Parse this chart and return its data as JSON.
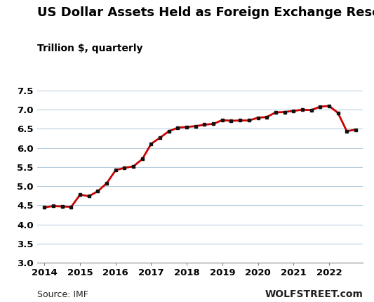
{
  "title": "US Dollar Assets Held as Foreign Exchange Reserves",
  "subtitle": "Trillion $, quarterly",
  "source_text": "Source: IMF",
  "watermark": "WOLFSTREET.com",
  "ylim": [
    3.0,
    7.5
  ],
  "yticks": [
    3.0,
    3.5,
    4.0,
    4.5,
    5.0,
    5.5,
    6.0,
    6.5,
    7.0,
    7.5
  ],
  "background_color": "#ffffff",
  "line_color": "#cc0000",
  "marker_color": "#111111",
  "grid_color": "#b8cfe0",
  "data": [
    [
      2014.0,
      4.45
    ],
    [
      2014.25,
      4.48
    ],
    [
      2014.5,
      4.47
    ],
    [
      2014.75,
      4.46
    ],
    [
      2015.0,
      4.78
    ],
    [
      2015.25,
      4.74
    ],
    [
      2015.5,
      4.87
    ],
    [
      2015.75,
      5.08
    ],
    [
      2016.0,
      5.42
    ],
    [
      2016.25,
      5.48
    ],
    [
      2016.5,
      5.52
    ],
    [
      2016.75,
      5.71
    ],
    [
      2017.0,
      6.11
    ],
    [
      2017.25,
      6.27
    ],
    [
      2017.5,
      6.44
    ],
    [
      2017.75,
      6.53
    ],
    [
      2018.0,
      6.55
    ],
    [
      2018.25,
      6.57
    ],
    [
      2018.5,
      6.61
    ],
    [
      2018.75,
      6.63
    ],
    [
      2019.0,
      6.73
    ],
    [
      2019.25,
      6.71
    ],
    [
      2019.5,
      6.72
    ],
    [
      2019.75,
      6.72
    ],
    [
      2020.0,
      6.79
    ],
    [
      2020.25,
      6.81
    ],
    [
      2020.5,
      6.93
    ],
    [
      2020.75,
      6.94
    ],
    [
      2021.0,
      6.97
    ],
    [
      2021.25,
      7.0
    ],
    [
      2021.5,
      6.99
    ],
    [
      2021.75,
      7.08
    ],
    [
      2022.0,
      7.1
    ],
    [
      2022.25,
      6.92
    ],
    [
      2022.5,
      6.44
    ],
    [
      2022.75,
      6.48
    ]
  ],
  "xticks": [
    2014,
    2015,
    2016,
    2017,
    2018,
    2019,
    2020,
    2021,
    2022
  ],
  "xlim": [
    2013.8,
    2022.95
  ],
  "title_fontsize": 13,
  "subtitle_fontsize": 10,
  "tick_fontsize": 9.5,
  "source_fontsize": 9,
  "watermark_fontsize": 10
}
